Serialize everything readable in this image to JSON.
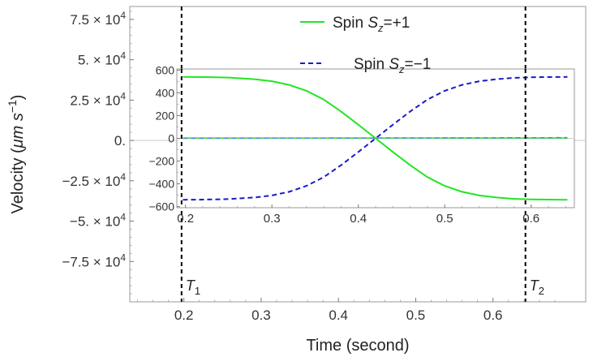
{
  "chart_data": [
    {
      "type": "line",
      "xlabel": "Time (second)",
      "ylabel_main": "Velocity (",
      "ylabel_unit": "μm s",
      "ylabel_exp": "−1",
      "ylabel_close": ")",
      "xlim": [
        0.13,
        0.72
      ],
      "ylim": [
        -100000,
        83000
      ],
      "xticks": [
        0.2,
        0.3,
        0.4,
        0.5,
        0.6
      ],
      "xtick_labels": [
        "0.2",
        "0.3",
        "0.4",
        "0.5",
        "0.6"
      ],
      "yticks": [
        {
          "v": 75000,
          "mant": "7.5",
          "times": "×",
          "base": "10",
          "exp": "4"
        },
        {
          "v": 50000,
          "mant": "5.",
          "times": "×",
          "base": "10",
          "exp": "4"
        },
        {
          "v": 25000,
          "mant": "2.5",
          "times": "×",
          "base": "10",
          "exp": "4"
        },
        {
          "v": 0,
          "mant": "0.",
          "times": "",
          "base": "",
          "exp": ""
        },
        {
          "v": -25000,
          "mant": "−2.5",
          "times": "×",
          "base": "10",
          "exp": "4"
        },
        {
          "v": -50000,
          "mant": "−5.",
          "times": "×",
          "base": "10",
          "exp": "4"
        },
        {
          "v": -75000,
          "mant": "−7.5",
          "times": "×",
          "base": "10",
          "exp": "4"
        }
      ],
      "series": [
        {
          "name": "Spin S_z=+1",
          "color": "#22e622",
          "style": "solid",
          "x": [
            0.197,
            0.642
          ],
          "y": [
            0,
            0
          ]
        },
        {
          "name": "Spin S_z=−1",
          "color": "#1a1acc",
          "style": "dashed",
          "x": [
            0.197,
            0.642
          ],
          "y": [
            0,
            0
          ]
        }
      ],
      "vlines": [
        {
          "x": 0.197,
          "label": "T",
          "sub": "1"
        },
        {
          "x": 0.642,
          "label": "T",
          "sub": "2"
        }
      ],
      "legend": {
        "placement": "top-center",
        "entries": [
          {
            "prefix": "Spin ",
            "var": "S",
            "sub": "z",
            "suffix": "=+1",
            "color": "#22e622",
            "style": "solid"
          },
          {
            "prefix": "Spin ",
            "var": "S",
            "sub": "z",
            "suffix": "=−1",
            "color": "#1a1acc",
            "style": "dashed"
          }
        ]
      }
    },
    {
      "type": "line",
      "role": "inset",
      "xlim": [
        0.19,
        0.65
      ],
      "ylim": [
        -610,
        610
      ],
      "xticks": [
        0.2,
        0.3,
        0.4,
        0.5,
        0.6
      ],
      "xtick_labels": [
        "0.2",
        "0.3",
        "0.4",
        "0.5",
        "0.6"
      ],
      "yticks": [
        600,
        400,
        200,
        0,
        -200,
        -400,
        -600
      ],
      "ytick_labels": [
        "600",
        "400",
        "200",
        "0",
        "−200",
        "−400",
        "−600"
      ],
      "series": [
        {
          "name": "Spin S_z=+1",
          "color": "#22e622",
          "style": "solid",
          "x": [
            0.197,
            0.22,
            0.25,
            0.28,
            0.3,
            0.32,
            0.34,
            0.36,
            0.38,
            0.4,
            0.42,
            0.44,
            0.46,
            0.48,
            0.5,
            0.52,
            0.54,
            0.56,
            0.58,
            0.6,
            0.62,
            0.642
          ],
          "y": [
            540,
            539,
            534,
            520,
            502,
            470,
            418,
            341,
            236,
            120,
            0,
            -120,
            -236,
            -341,
            -418,
            -470,
            -502,
            -520,
            -532,
            -537,
            -539,
            -540
          ]
        },
        {
          "name": "Spin S_z=−1",
          "color": "#1a1acc",
          "style": "dashed",
          "x": [
            0.197,
            0.22,
            0.25,
            0.28,
            0.3,
            0.32,
            0.34,
            0.36,
            0.38,
            0.4,
            0.42,
            0.44,
            0.46,
            0.48,
            0.5,
            0.52,
            0.54,
            0.56,
            0.58,
            0.6,
            0.62,
            0.642
          ],
          "y": [
            -540,
            -539,
            -534,
            -520,
            -502,
            -470,
            -418,
            -341,
            -236,
            -120,
            0,
            120,
            236,
            341,
            418,
            470,
            502,
            520,
            532,
            537,
            539,
            540
          ]
        },
        {
          "name": "green-flat",
          "color": "#22e622",
          "style": "solid",
          "x": [
            0.197,
            0.642
          ],
          "y": [
            3,
            3
          ]
        },
        {
          "name": "blue-flat",
          "color": "#5a7fd8",
          "style": "dashed",
          "x": [
            0.197,
            0.642
          ],
          "y": [
            0,
            6
          ]
        }
      ],
      "vlines": [
        {
          "x": 0.197
        },
        {
          "x": 0.642
        }
      ]
    }
  ]
}
